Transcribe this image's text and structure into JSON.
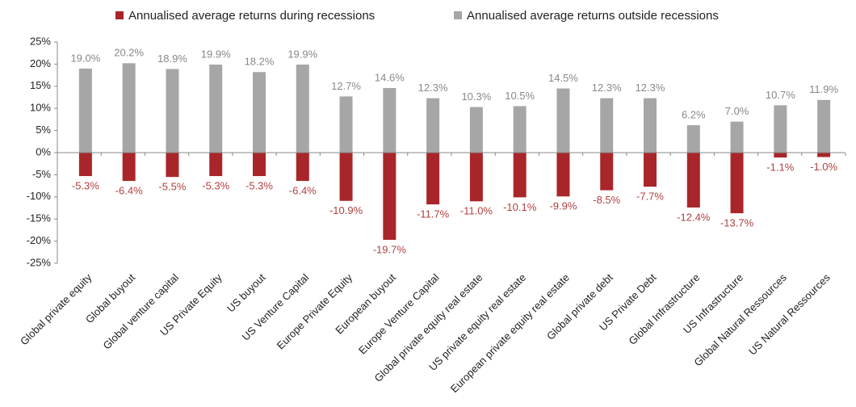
{
  "chart_data": {
    "type": "bar",
    "categories": [
      "Global private equity",
      "Global buyout",
      "Global venture capital",
      "US Private Equity",
      "US buyout",
      "US Venture Capital",
      "Europe Private Equity",
      "European buyout",
      "Europe Venture Capital",
      "Global private equity real estate",
      "US private equity real estate",
      "European private equity real estate",
      "Global private debt",
      "US Private Debt",
      "Global Infrastructure",
      "US Infrastructure",
      "Global Natural Ressources",
      "US Natural Ressources"
    ],
    "series": [
      {
        "name": "Annualised average returns during recessions",
        "color": "#a8262a",
        "values": [
          -5.3,
          -6.4,
          -5.5,
          -5.3,
          -5.3,
          -6.4,
          -10.9,
          -19.7,
          -11.7,
          -11.0,
          -10.1,
          -9.9,
          -8.5,
          -7.7,
          -12.4,
          -13.7,
          -1.1,
          -1.0
        ],
        "value_labels": [
          "-5.3%",
          "-6.4%",
          "-5.5%",
          "-5.3%",
          "-5.3%",
          "-6.4%",
          "-10.9%",
          "-19.7%",
          "-11.7%",
          "-11.0%",
          "-10.1%",
          "-9.9%",
          "-8.5%",
          "-7.7%",
          "-12.4%",
          "-13.7%",
          "-1.1%",
          "-1.0%"
        ]
      },
      {
        "name": "Annualised average returns outside recessions",
        "color": "#a6a6a6",
        "values": [
          19.0,
          20.2,
          18.9,
          19.9,
          18.2,
          19.9,
          12.7,
          14.6,
          12.3,
          10.3,
          10.5,
          14.5,
          12.3,
          12.3,
          6.2,
          7.0,
          10.7,
          11.9
        ],
        "value_labels": [
          "19.0%",
          "20.2%",
          "18.9%",
          "19.9%",
          "18.2%",
          "19.9%",
          "12.7%",
          "14.6%",
          "12.3%",
          "10.3%",
          "10.5%",
          "14.5%",
          "12.3%",
          "12.3%",
          "6.2%",
          "7.0%",
          "10.7%",
          "11.9%"
        ]
      }
    ],
    "ylim": [
      -25,
      25
    ],
    "yticks": [
      {
        "value": -25,
        "label": "-25%"
      },
      {
        "value": -20,
        "label": "-20%"
      },
      {
        "value": -15,
        "label": "-15%"
      },
      {
        "value": -10,
        "label": "-10%"
      },
      {
        "value": -5,
        "label": "-5%"
      },
      {
        "value": 0,
        "label": "0%"
      },
      {
        "value": 5,
        "label": "5%"
      },
      {
        "value": 10,
        "label": "10%"
      },
      {
        "value": 15,
        "label": "15%"
      },
      {
        "value": 20,
        "label": "20%"
      },
      {
        "value": 25,
        "label": "25%"
      }
    ],
    "legend": "top"
  }
}
